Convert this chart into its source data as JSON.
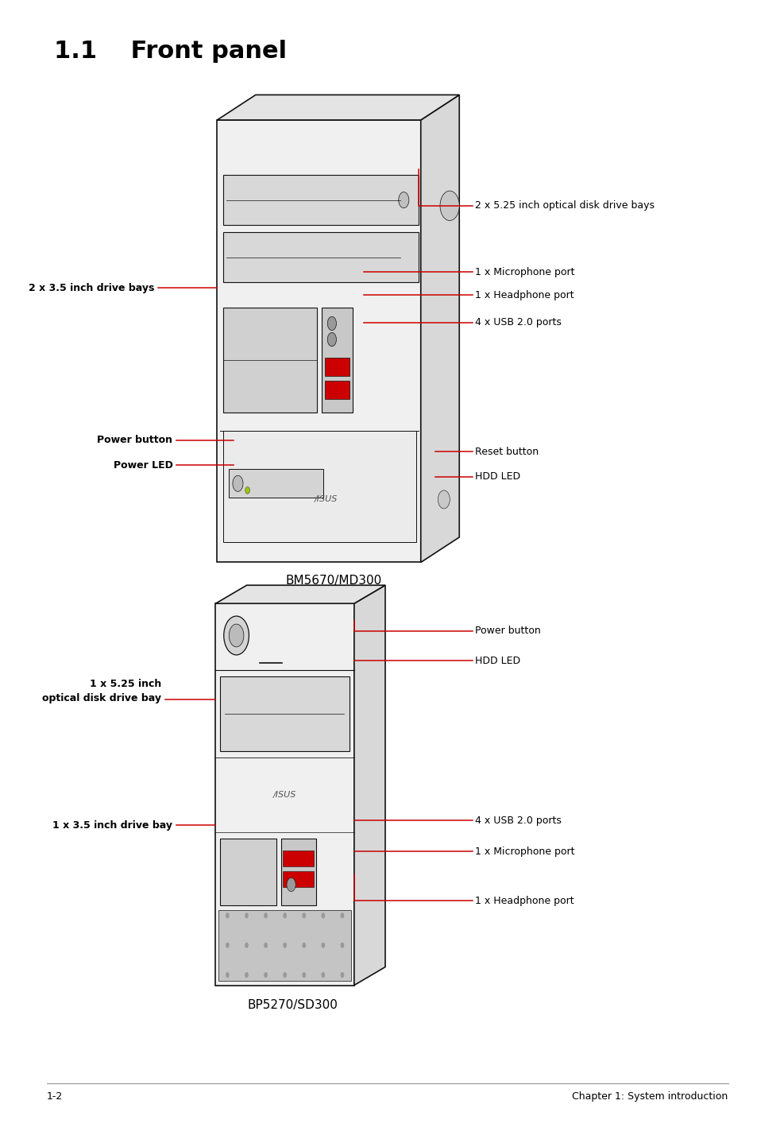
{
  "title": "1.1    Front panel",
  "bg_color": "#ffffff",
  "text_color": "#000000",
  "line_color": "#cc0000",
  "footer_left": "1-2",
  "footer_right": "Chapter 1: System introduction",
  "diagram1_label": "BM5670/MD300",
  "diagram2_label": "BP5270/SD300"
}
